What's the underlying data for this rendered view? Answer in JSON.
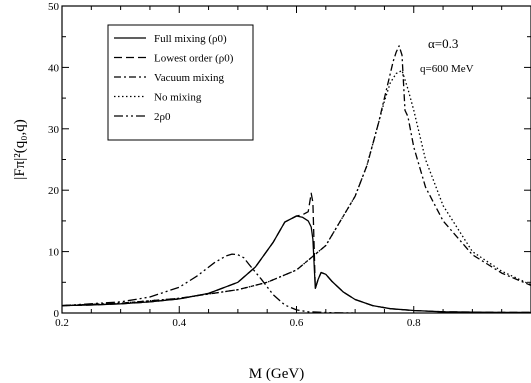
{
  "chart_data": {
    "type": "line",
    "xlabel": "M (GeV)",
    "ylabel": "|Fπ|²(q₀,q)",
    "xlim": [
      0.2,
      1.0
    ],
    "ylim": [
      0,
      50
    ],
    "x_ticks": [
      "0.2",
      "0.4",
      "0.6",
      "0.8"
    ],
    "y_ticks": [
      "0",
      "10",
      "20",
      "30",
      "40",
      "50"
    ],
    "annotations": [
      "α=0.3",
      "q=600 MeV"
    ],
    "legend_position": "top-left",
    "series": [
      {
        "name": "Full mixing (ρ0)",
        "dash": "none",
        "x": [
          0.2,
          0.25,
          0.3,
          0.35,
          0.4,
          0.45,
          0.5,
          0.53,
          0.56,
          0.58,
          0.6,
          0.61,
          0.62,
          0.625,
          0.628,
          0.632,
          0.637,
          0.642,
          0.65,
          0.66,
          0.68,
          0.7,
          0.73,
          0.76,
          0.8,
          0.85,
          0.9,
          0.95,
          1.0
        ],
        "y": [
          1.2,
          1.3,
          1.5,
          1.8,
          2.3,
          3.2,
          5.0,
          7.5,
          11.5,
          14.8,
          15.8,
          15.6,
          15.0,
          14.0,
          12.0,
          4.0,
          5.5,
          6.6,
          6.3,
          5.2,
          3.4,
          2.2,
          1.2,
          0.7,
          0.4,
          0.2,
          0.15,
          0.1,
          0.1
        ]
      },
      {
        "name": "Lowest order (ρ0)",
        "dash": "8,4",
        "x": [
          0.2,
          0.25,
          0.3,
          0.35,
          0.4,
          0.45,
          0.5,
          0.53,
          0.56,
          0.58,
          0.6,
          0.61,
          0.62,
          0.625,
          0.628,
          0.632,
          0.637,
          0.642,
          0.65,
          0.66,
          0.68,
          0.7,
          0.73,
          0.76,
          0.8,
          0.85,
          0.9,
          0.95,
          1.0
        ],
        "y": [
          1.2,
          1.3,
          1.5,
          1.8,
          2.3,
          3.2,
          5.0,
          7.5,
          11.5,
          14.8,
          15.8,
          16.0,
          16.5,
          19.5,
          18.0,
          4.0,
          5.5,
          6.6,
          6.3,
          5.2,
          3.4,
          2.2,
          1.2,
          0.7,
          0.4,
          0.2,
          0.15,
          0.1,
          0.1
        ]
      },
      {
        "name": "Vacuum mixing",
        "dash": "7,3,2,3",
        "x": [
          0.2,
          0.3,
          0.4,
          0.5,
          0.55,
          0.6,
          0.65,
          0.7,
          0.72,
          0.74,
          0.75,
          0.76,
          0.765,
          0.77,
          0.775,
          0.78,
          0.785,
          0.79,
          0.8,
          0.82,
          0.85,
          0.9,
          0.95,
          1.0
        ],
        "y": [
          1.2,
          1.6,
          2.4,
          3.8,
          5.0,
          7.0,
          11.0,
          19.0,
          24.0,
          31.0,
          35.0,
          39.0,
          41.0,
          42.5,
          43.5,
          42.0,
          33.0,
          32.0,
          27.0,
          20.5,
          15.0,
          9.5,
          6.5,
          4.5
        ]
      },
      {
        "name": "No mixing",
        "dash": "1.5,2.5",
        "x": [
          0.2,
          0.3,
          0.4,
          0.5,
          0.55,
          0.6,
          0.65,
          0.7,
          0.72,
          0.74,
          0.75,
          0.76,
          0.77,
          0.78,
          0.79,
          0.8,
          0.82,
          0.85,
          0.9,
          0.95,
          1.0
        ],
        "y": [
          1.2,
          1.6,
          2.4,
          3.8,
          5.0,
          7.0,
          11.0,
          19.0,
          24.0,
          31.0,
          34.5,
          37.5,
          39.0,
          39.5,
          36.5,
          33.0,
          25.0,
          17.5,
          10.0,
          6.8,
          4.6
        ]
      },
      {
        "name": "2ρ0",
        "dash": "9,3,2,3,2,3",
        "x": [
          0.2,
          0.3,
          0.35,
          0.4,
          0.43,
          0.46,
          0.48,
          0.49,
          0.5,
          0.51,
          0.52,
          0.54,
          0.56,
          0.58,
          0.6,
          0.62,
          0.66,
          0.7
        ],
        "y": [
          1.2,
          1.8,
          2.6,
          4.2,
          6.0,
          8.2,
          9.3,
          9.6,
          9.5,
          9.0,
          7.8,
          5.5,
          3.0,
          1.3,
          0.5,
          0.2,
          0.05,
          0.0
        ]
      }
    ]
  }
}
